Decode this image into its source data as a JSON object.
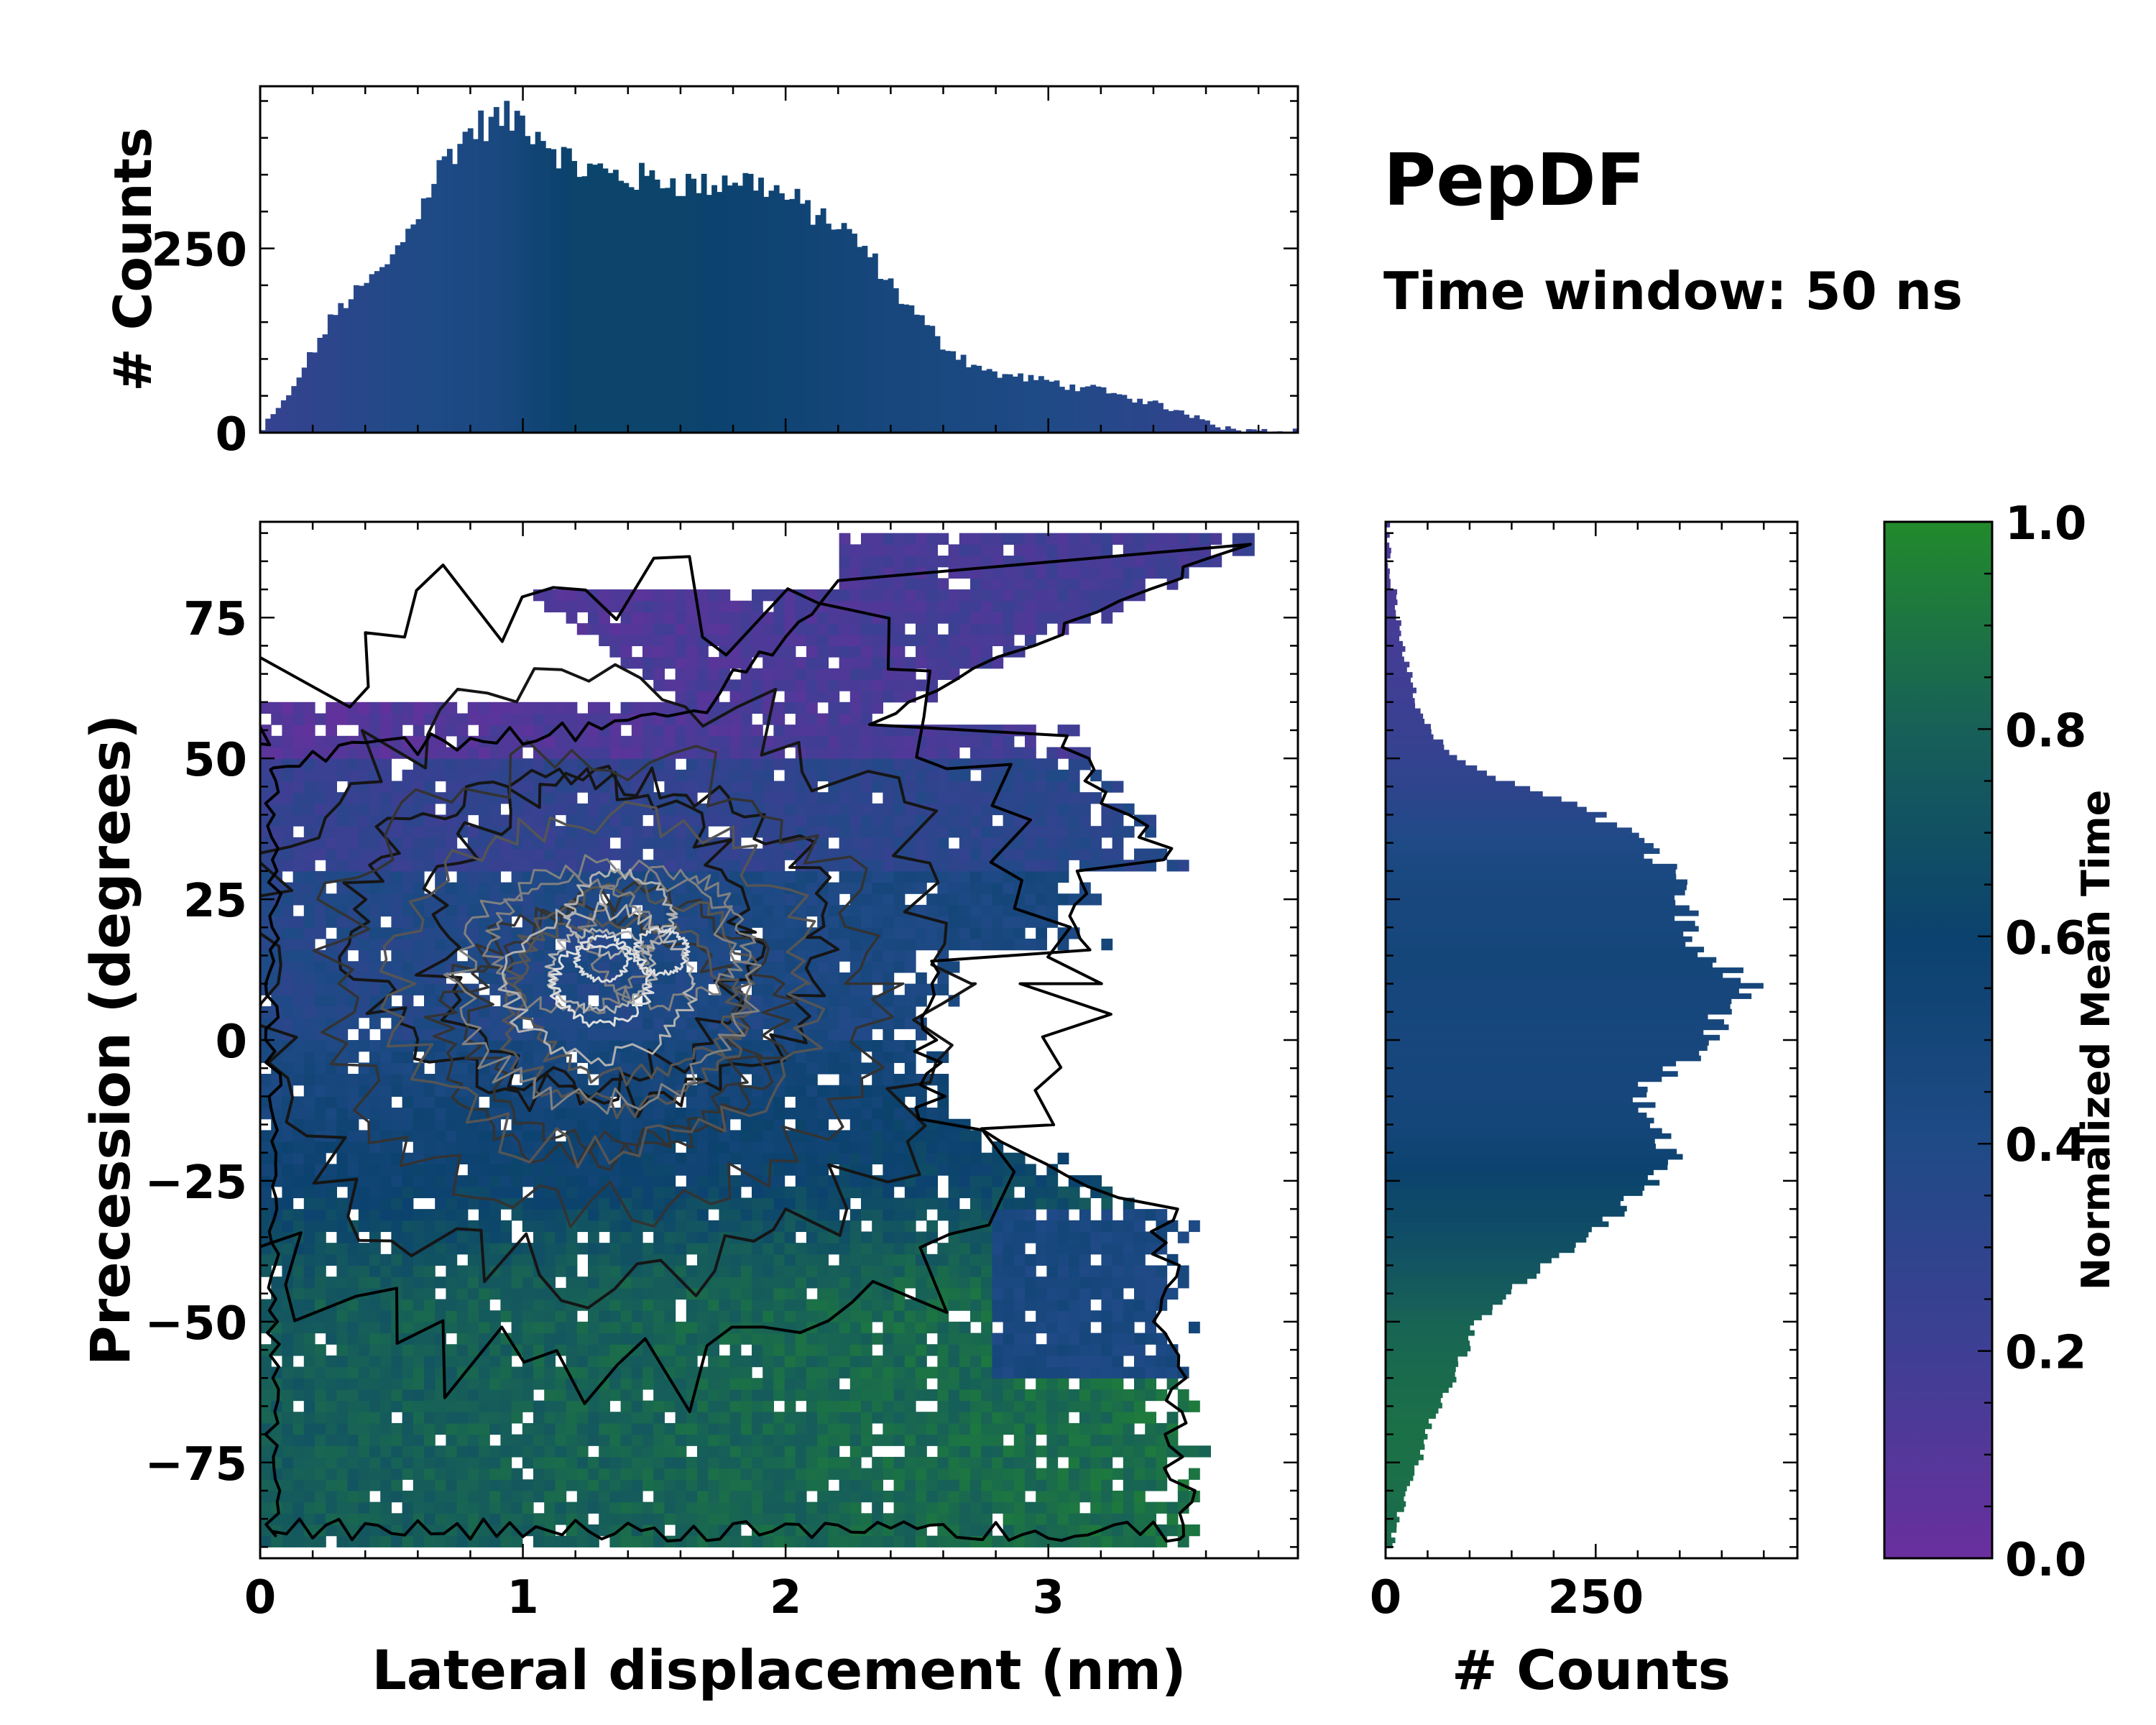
{
  "figure": {
    "title": "PepDF",
    "subtitle": "Time window: 50 ns"
  },
  "chart_data": [
    {
      "id": "top_hist",
      "type": "bar",
      "title": "",
      "xlabel": "",
      "ylabel": "# Counts",
      "xlim": [
        0,
        3.95
      ],
      "ylim": [
        0,
        470
      ],
      "yticks": [
        0,
        250
      ],
      "x_profile": [
        [
          0,
          0
        ],
        [
          0.03,
          15
        ],
        [
          0.1,
          45
        ],
        [
          0.2,
          110
        ],
        [
          0.3,
          170
        ],
        [
          0.4,
          200
        ],
        [
          0.5,
          235
        ],
        [
          0.6,
          300
        ],
        [
          0.7,
          370
        ],
        [
          0.8,
          410
        ],
        [
          0.9,
          425
        ],
        [
          1.0,
          425
        ],
        [
          1.1,
          395
        ],
        [
          1.2,
          360
        ],
        [
          1.3,
          355
        ],
        [
          1.4,
          345
        ],
        [
          1.5,
          345
        ],
        [
          1.6,
          340
        ],
        [
          1.7,
          335
        ],
        [
          1.8,
          345
        ],
        [
          1.9,
          340
        ],
        [
          2.0,
          320
        ],
        [
          2.1,
          300
        ],
        [
          2.2,
          280
        ],
        [
          2.3,
          250
        ],
        [
          2.4,
          200
        ],
        [
          2.5,
          160
        ],
        [
          2.6,
          120
        ],
        [
          2.7,
          95
        ],
        [
          2.8,
          80
        ],
        [
          2.9,
          75
        ],
        [
          3.0,
          70
        ],
        [
          3.1,
          62
        ],
        [
          3.2,
          58
        ],
        [
          3.3,
          48
        ],
        [
          3.4,
          40
        ],
        [
          3.5,
          28
        ],
        [
          3.6,
          20
        ],
        [
          3.65,
          8
        ],
        [
          3.7,
          4
        ],
        [
          3.8,
          3
        ],
        [
          3.95,
          2
        ]
      ],
      "mean_time_profile": [
        [
          0,
          0.25
        ],
        [
          0.5,
          0.38
        ],
        [
          0.9,
          0.45
        ],
        [
          1.2,
          0.62
        ],
        [
          1.6,
          0.62
        ],
        [
          2.0,
          0.55
        ],
        [
          2.4,
          0.48
        ],
        [
          3.0,
          0.4
        ],
        [
          3.5,
          0.3
        ],
        [
          3.95,
          0.25
        ]
      ]
    },
    {
      "id": "heatmap",
      "type": "heatmap",
      "title": "",
      "xlabel": "Lateral displacement (nm)",
      "ylabel": "Precession (degrees)",
      "xlim": [
        0,
        3.95
      ],
      "ylim": [
        -92,
        92
      ],
      "xticks": [
        0,
        1,
        2,
        3
      ],
      "yticks": [
        -75,
        -50,
        -25,
        0,
        25,
        50,
        75
      ],
      "ytick_labels": [
        "−75",
        "−50",
        "−25",
        "0",
        "25",
        "50",
        "75"
      ],
      "density_peak": {
        "x": 1.3,
        "y": 10
      },
      "colorbar_label": "Normalized Mean Time"
    },
    {
      "id": "right_hist",
      "type": "bar",
      "orientation": "horizontal",
      "title": "",
      "xlabel": "# Counts",
      "ylabel": "",
      "xlim": [
        0,
        490
      ],
      "ylim": [
        -92,
        92
      ],
      "xticks": [
        0,
        250
      ],
      "y_profile": [
        [
          -92,
          0
        ],
        [
          -88,
          10
        ],
        [
          -80,
          25
        ],
        [
          -70,
          50
        ],
        [
          -60,
          80
        ],
        [
          -55,
          95
        ],
        [
          -50,
          110
        ],
        [
          -45,
          150
        ],
        [
          -40,
          190
        ],
        [
          -35,
          240
        ],
        [
          -30,
          280
        ],
        [
          -25,
          315
        ],
        [
          -20,
          340
        ],
        [
          -15,
          320
        ],
        [
          -10,
          300
        ],
        [
          -5,
          340
        ],
        [
          0,
          380
        ],
        [
          5,
          400
        ],
        [
          10,
          430
        ],
        [
          15,
          380
        ],
        [
          20,
          360
        ],
        [
          25,
          350
        ],
        [
          30,
          340
        ],
        [
          35,
          310
        ],
        [
          40,
          250
        ],
        [
          45,
          160
        ],
        [
          50,
          85
        ],
        [
          55,
          55
        ],
        [
          60,
          35
        ],
        [
          65,
          30
        ],
        [
          70,
          20
        ],
        [
          75,
          15
        ],
        [
          80,
          10
        ],
        [
          85,
          6
        ],
        [
          90,
          3
        ]
      ],
      "mean_time_profile": [
        [
          -92,
          0.85
        ],
        [
          -70,
          0.88
        ],
        [
          -50,
          0.82
        ],
        [
          -35,
          0.68
        ],
        [
          -25,
          0.62
        ],
        [
          -15,
          0.5
        ],
        [
          0,
          0.48
        ],
        [
          15,
          0.5
        ],
        [
          30,
          0.45
        ],
        [
          45,
          0.3
        ],
        [
          60,
          0.2
        ],
        [
          92,
          0.12
        ]
      ]
    },
    {
      "id": "colorbar",
      "type": "colorbar",
      "label": "Normalized Mean Time",
      "range": [
        0.0,
        1.0
      ],
      "ticks": [
        0.0,
        0.2,
        0.4,
        0.6,
        0.8,
        1.0
      ],
      "tick_labels": [
        "0.0",
        "0.2",
        "0.4",
        "0.6",
        "0.8",
        "1.0"
      ],
      "colors": [
        "#6a2f9e",
        "#3e3f94",
        "#1f4a86",
        "#0b426e",
        "#176058",
        "#228a2c"
      ]
    }
  ]
}
